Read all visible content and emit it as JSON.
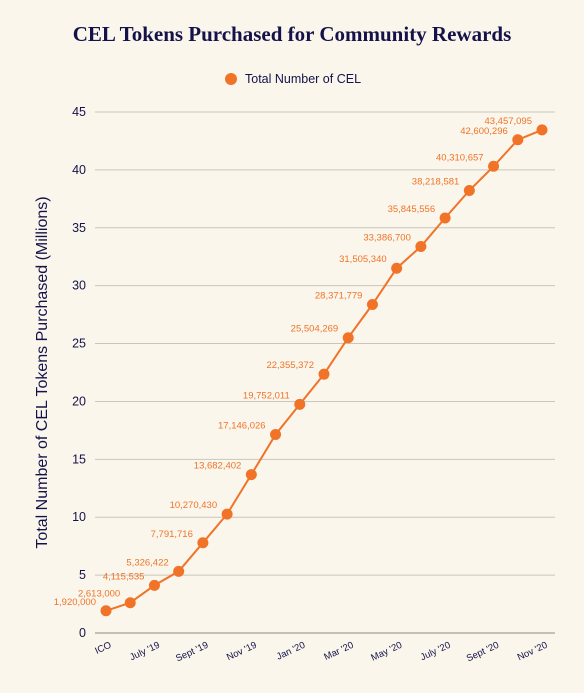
{
  "chart_data": {
    "type": "line",
    "title": "CEL Tokens Purchased for Community Rewards",
    "ylabel": "Total Number of CEL Tokens Purchased (Millions)",
    "xlabel": "",
    "ylim": [
      0,
      45
    ],
    "yticks": [
      0,
      5,
      10,
      15,
      20,
      25,
      30,
      35,
      40,
      45
    ],
    "grid": true,
    "legend_position": "top-center",
    "x_tick_labels": [
      {
        "index": 0,
        "label": "ICO"
      },
      {
        "index": 2,
        "label": "July '19"
      },
      {
        "index": 4,
        "label": "Sept '19"
      },
      {
        "index": 6,
        "label": "Nov '19"
      },
      {
        "index": 8,
        "label": "Jan '20"
      },
      {
        "index": 10,
        "label": "Mar '20"
      },
      {
        "index": 12,
        "label": "May '20"
      },
      {
        "index": 14,
        "label": "July '20"
      },
      {
        "index": 16,
        "label": "Sept '20"
      },
      {
        "index": 18,
        "label": "Nov '20"
      }
    ],
    "series": [
      {
        "name": "Total Number of CEL",
        "color": "#f07328",
        "values": [
          1.92,
          2.613,
          4.115535,
          5.326422,
          7.791716,
          10.27043,
          13.682402,
          17.146026,
          19.752011,
          22.355372,
          25.504269,
          28.371779,
          31.50534,
          33.3867,
          35.845556,
          38.218581,
          40.310657,
          42.600296,
          43.457095
        ],
        "data_labels": [
          "1,920,000",
          "2,613,000",
          "4,115,535",
          "5,326,422",
          "7,791,716",
          "10,270,430",
          "13,682,402",
          "17,146,026",
          "19,752,011",
          "22,355,372",
          "25,504,269",
          "28,371,779",
          "31,505,340",
          "33,386,700",
          "35,845,556",
          "38,218,581",
          "40,310,657",
          "42,600,296",
          "43,457,095"
        ]
      }
    ]
  }
}
